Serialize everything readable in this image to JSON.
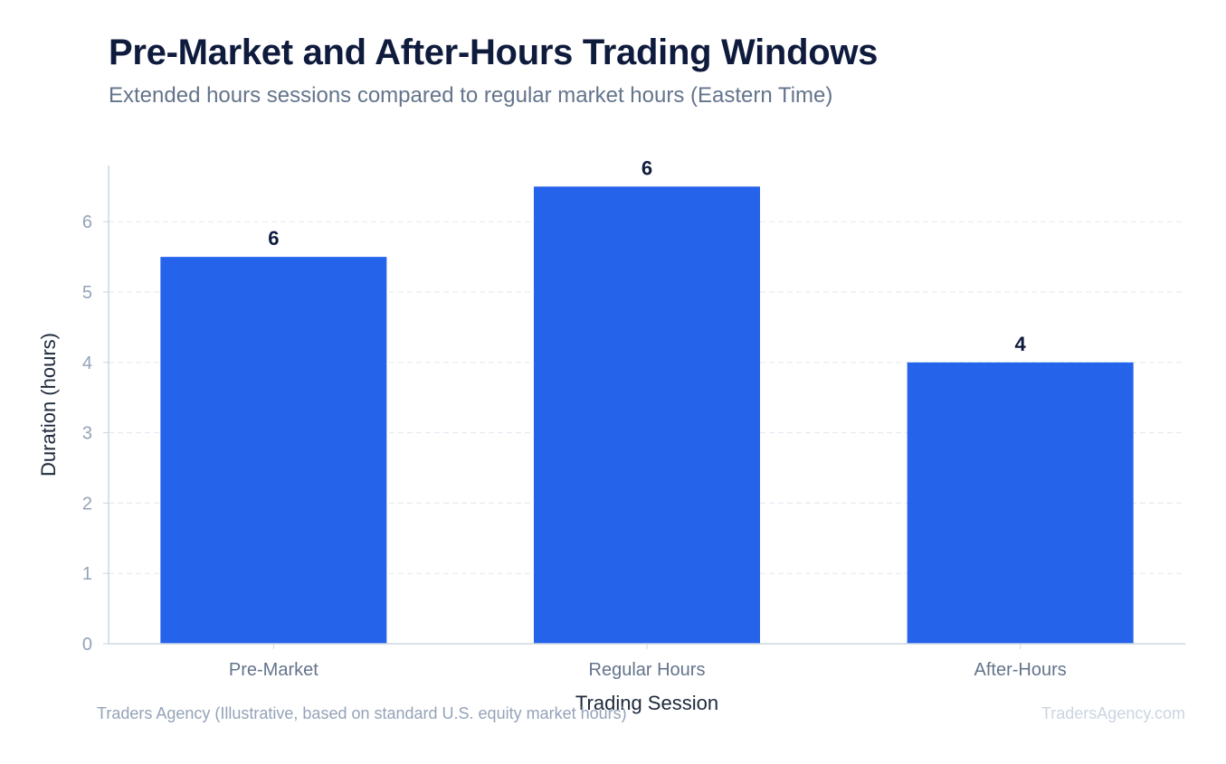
{
  "chart_data": {
    "type": "bar",
    "title": "Pre-Market and After-Hours Trading Windows",
    "subtitle": "Extended hours sessions compared to regular market hours (Eastern Time)",
    "categories": [
      "Pre-Market",
      "Regular Hours",
      "After-Hours"
    ],
    "values": [
      5.5,
      6.5,
      4
    ],
    "data_labels": [
      "6",
      "6",
      "4"
    ],
    "xlabel": "Trading Session",
    "ylabel": "Duration (hours)",
    "ylim": [
      0,
      6.8
    ],
    "yticks": [
      0,
      1,
      2,
      3,
      4,
      5,
      6
    ],
    "grid": true,
    "legend": "none",
    "bar_color": "#2563eb"
  },
  "footer": {
    "source": "Traders Agency (Illustrative, based on standard U.S. equity market hours)",
    "watermark": "TradersAgency.com"
  }
}
